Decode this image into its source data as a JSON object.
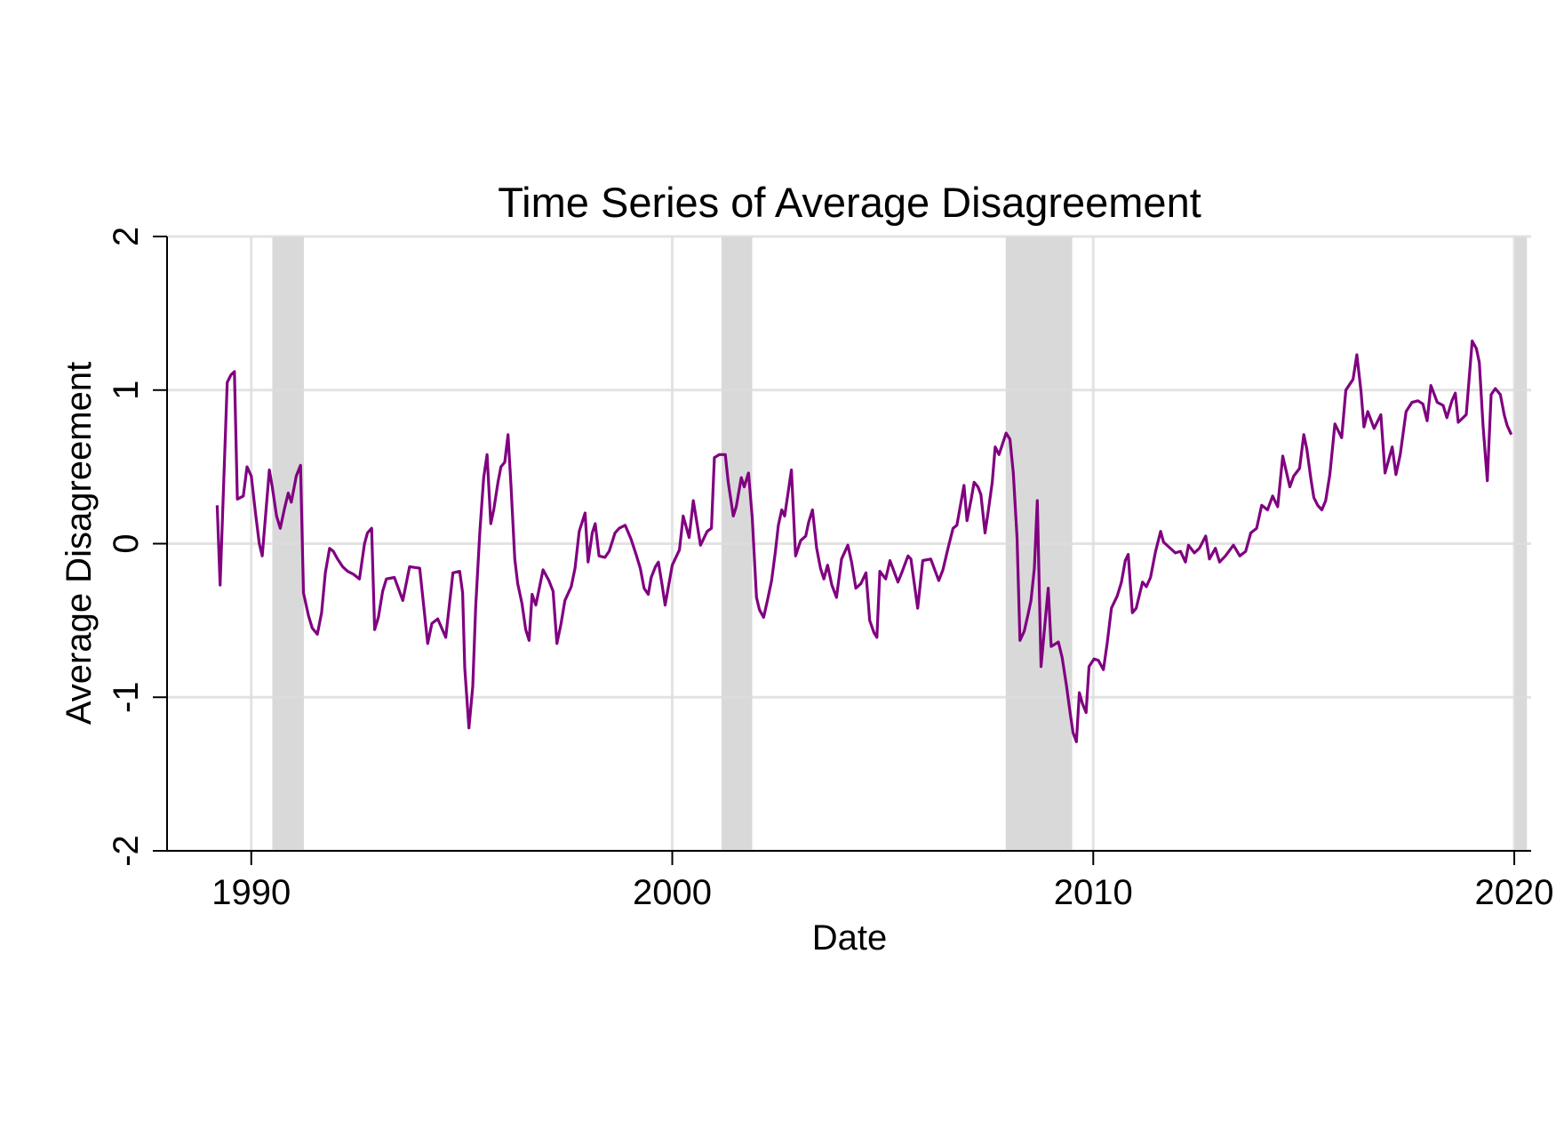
{
  "chart_data": {
    "type": "line",
    "title": "Time Series of Average Disagreement",
    "xlabel": "Date",
    "ylabel": "Average Disagreement",
    "xlim": [
      1988.0,
      2020.4
    ],
    "ylim": [
      -2,
      2
    ],
    "xticks": [
      1990,
      2000,
      2010,
      2020
    ],
    "yticks": [
      -2,
      -1,
      0,
      1,
      2
    ],
    "grid": true,
    "line_color": "#800080",
    "shade_color": "#d9d9d9",
    "grid_color": "#dddddd",
    "shaded_periods": [
      [
        1990.5,
        1991.25
      ],
      [
        2001.17,
        2001.9
      ],
      [
        2007.92,
        2009.5
      ],
      [
        2020.0,
        2020.3
      ]
    ],
    "series": [
      {
        "points": [
          [
            1989.19,
            0.25
          ],
          [
            1989.26,
            -0.27
          ],
          [
            1989.43,
            1.05
          ],
          [
            1989.52,
            1.1
          ],
          [
            1989.6,
            1.12
          ],
          [
            1989.67,
            0.29
          ],
          [
            1989.81,
            0.31
          ],
          [
            1989.9,
            0.5
          ],
          [
            1990.0,
            0.44
          ],
          [
            1990.1,
            0.2
          ],
          [
            1990.19,
            0.0
          ],
          [
            1990.26,
            -0.08
          ],
          [
            1990.43,
            0.48
          ],
          [
            1990.5,
            0.37
          ],
          [
            1990.6,
            0.18
          ],
          [
            1990.69,
            0.1
          ],
          [
            1990.79,
            0.23
          ],
          [
            1990.88,
            0.33
          ],
          [
            1990.95,
            0.27
          ],
          [
            1991.07,
            0.44
          ],
          [
            1991.17,
            0.51
          ],
          [
            1991.24,
            -0.32
          ],
          [
            1991.36,
            -0.47
          ],
          [
            1991.45,
            -0.55
          ],
          [
            1991.57,
            -0.59
          ],
          [
            1991.67,
            -0.45
          ],
          [
            1991.76,
            -0.19
          ],
          [
            1991.86,
            -0.03
          ],
          [
            1991.95,
            -0.05
          ],
          [
            1992.05,
            -0.1
          ],
          [
            1992.17,
            -0.15
          ],
          [
            1992.29,
            -0.18
          ],
          [
            1992.43,
            -0.2
          ],
          [
            1992.57,
            -0.23
          ],
          [
            1992.69,
            0.0
          ],
          [
            1992.76,
            0.07
          ],
          [
            1992.86,
            0.1
          ],
          [
            1992.93,
            -0.56
          ],
          [
            1993.02,
            -0.48
          ],
          [
            1993.12,
            -0.31
          ],
          [
            1993.21,
            -0.23
          ],
          [
            1993.4,
            -0.22
          ],
          [
            1993.6,
            -0.37
          ],
          [
            1993.76,
            -0.15
          ],
          [
            1994.0,
            -0.16
          ],
          [
            1994.19,
            -0.65
          ],
          [
            1994.29,
            -0.52
          ],
          [
            1994.43,
            -0.49
          ],
          [
            1994.62,
            -0.61
          ],
          [
            1994.79,
            -0.19
          ],
          [
            1994.95,
            -0.18
          ],
          [
            1995.02,
            -0.32
          ],
          [
            1995.07,
            -0.81
          ],
          [
            1995.17,
            -1.2
          ],
          [
            1995.26,
            -0.93
          ],
          [
            1995.33,
            -0.41
          ],
          [
            1995.43,
            0.08
          ],
          [
            1995.52,
            0.43
          ],
          [
            1995.6,
            0.58
          ],
          [
            1995.69,
            0.13
          ],
          [
            1995.76,
            0.22
          ],
          [
            1995.86,
            0.4
          ],
          [
            1995.93,
            0.5
          ],
          [
            1996.02,
            0.53
          ],
          [
            1996.1,
            0.71
          ],
          [
            1996.17,
            0.37
          ],
          [
            1996.26,
            -0.1
          ],
          [
            1996.33,
            -0.26
          ],
          [
            1996.43,
            -0.39
          ],
          [
            1996.52,
            -0.56
          ],
          [
            1996.6,
            -0.63
          ],
          [
            1996.67,
            -0.33
          ],
          [
            1996.76,
            -0.4
          ],
          [
            1996.93,
            -0.17
          ],
          [
            1997.07,
            -0.24
          ],
          [
            1997.17,
            -0.31
          ],
          [
            1997.26,
            -0.65
          ],
          [
            1997.36,
            -0.52
          ],
          [
            1997.45,
            -0.37
          ],
          [
            1997.6,
            -0.28
          ],
          [
            1997.69,
            -0.16
          ],
          [
            1997.79,
            0.08
          ],
          [
            1997.93,
            0.2
          ],
          [
            1998.0,
            -0.12
          ],
          [
            1998.1,
            0.07
          ],
          [
            1998.17,
            0.13
          ],
          [
            1998.26,
            -0.08
          ],
          [
            1998.4,
            -0.09
          ],
          [
            1998.5,
            -0.05
          ],
          [
            1998.64,
            0.07
          ],
          [
            1998.74,
            0.1
          ],
          [
            1998.88,
            0.12
          ],
          [
            1999.02,
            0.03
          ],
          [
            1999.14,
            -0.07
          ],
          [
            1999.24,
            -0.16
          ],
          [
            1999.33,
            -0.29
          ],
          [
            1999.43,
            -0.33
          ],
          [
            1999.5,
            -0.22
          ],
          [
            1999.6,
            -0.15
          ],
          [
            1999.67,
            -0.12
          ],
          [
            1999.76,
            -0.27
          ],
          [
            1999.83,
            -0.4
          ],
          [
            2000.0,
            -0.14
          ],
          [
            2000.17,
            -0.04
          ],
          [
            2000.26,
            0.18
          ],
          [
            2000.4,
            0.04
          ],
          [
            2000.5,
            0.28
          ],
          [
            2000.67,
            -0.01
          ],
          [
            2000.83,
            0.08
          ],
          [
            2000.93,
            0.1
          ],
          [
            2001.0,
            0.56
          ],
          [
            2001.12,
            0.58
          ],
          [
            2001.26,
            0.58
          ],
          [
            2001.33,
            0.4
          ],
          [
            2001.45,
            0.18
          ],
          [
            2001.52,
            0.24
          ],
          [
            2001.64,
            0.43
          ],
          [
            2001.71,
            0.37
          ],
          [
            2001.81,
            0.46
          ],
          [
            2001.9,
            0.17
          ],
          [
            2002.0,
            -0.35
          ],
          [
            2002.07,
            -0.43
          ],
          [
            2002.17,
            -0.48
          ],
          [
            2002.26,
            -0.37
          ],
          [
            2002.36,
            -0.24
          ],
          [
            2002.45,
            -0.05
          ],
          [
            2002.52,
            0.12
          ],
          [
            2002.6,
            0.22
          ],
          [
            2002.67,
            0.18
          ],
          [
            2002.83,
            0.48
          ],
          [
            2002.93,
            -0.08
          ],
          [
            2003.05,
            0.02
          ],
          [
            2003.17,
            0.05
          ],
          [
            2003.24,
            0.14
          ],
          [
            2003.33,
            0.22
          ],
          [
            2003.43,
            -0.03
          ],
          [
            2003.52,
            -0.16
          ],
          [
            2003.6,
            -0.23
          ],
          [
            2003.69,
            -0.14
          ],
          [
            2003.79,
            -0.27
          ],
          [
            2003.9,
            -0.35
          ],
          [
            2004.02,
            -0.1
          ],
          [
            2004.17,
            -0.01
          ],
          [
            2004.26,
            -0.12
          ],
          [
            2004.36,
            -0.29
          ],
          [
            2004.48,
            -0.26
          ],
          [
            2004.6,
            -0.19
          ],
          [
            2004.69,
            -0.5
          ],
          [
            2004.79,
            -0.58
          ],
          [
            2004.86,
            -0.61
          ],
          [
            2004.93,
            -0.18
          ],
          [
            2005.07,
            -0.23
          ],
          [
            2005.17,
            -0.11
          ],
          [
            2005.36,
            -0.25
          ],
          [
            2005.45,
            -0.19
          ],
          [
            2005.6,
            -0.08
          ],
          [
            2005.67,
            -0.1
          ],
          [
            2005.83,
            -0.42
          ],
          [
            2005.95,
            -0.11
          ],
          [
            2006.14,
            -0.1
          ],
          [
            2006.33,
            -0.24
          ],
          [
            2006.43,
            -0.17
          ],
          [
            2006.55,
            -0.03
          ],
          [
            2006.67,
            0.1
          ],
          [
            2006.76,
            0.12
          ],
          [
            2006.93,
            0.38
          ],
          [
            2007.0,
            0.15
          ],
          [
            2007.1,
            0.29
          ],
          [
            2007.17,
            0.4
          ],
          [
            2007.26,
            0.37
          ],
          [
            2007.33,
            0.32
          ],
          [
            2007.43,
            0.07
          ],
          [
            2007.5,
            0.2
          ],
          [
            2007.6,
            0.4
          ],
          [
            2007.67,
            0.63
          ],
          [
            2007.76,
            0.58
          ],
          [
            2007.93,
            0.72
          ],
          [
            2008.02,
            0.68
          ],
          [
            2008.1,
            0.46
          ],
          [
            2008.19,
            0.04
          ],
          [
            2008.26,
            -0.63
          ],
          [
            2008.36,
            -0.57
          ],
          [
            2008.45,
            -0.46
          ],
          [
            2008.52,
            -0.37
          ],
          [
            2008.6,
            -0.16
          ],
          [
            2008.67,
            0.28
          ],
          [
            2008.76,
            -0.8
          ],
          [
            2008.93,
            -0.29
          ],
          [
            2009.0,
            -0.67
          ],
          [
            2009.17,
            -0.64
          ],
          [
            2009.26,
            -0.74
          ],
          [
            2009.36,
            -0.92
          ],
          [
            2009.45,
            -1.1
          ],
          [
            2009.52,
            -1.23
          ],
          [
            2009.6,
            -1.29
          ],
          [
            2009.67,
            -0.97
          ],
          [
            2009.74,
            -1.04
          ],
          [
            2009.83,
            -1.1
          ],
          [
            2009.9,
            -0.8
          ],
          [
            2010.02,
            -0.75
          ],
          [
            2010.12,
            -0.76
          ],
          [
            2010.24,
            -0.82
          ],
          [
            2010.33,
            -0.65
          ],
          [
            2010.43,
            -0.42
          ],
          [
            2010.57,
            -0.34
          ],
          [
            2010.67,
            -0.25
          ],
          [
            2010.76,
            -0.11
          ],
          [
            2010.83,
            -0.07
          ],
          [
            2010.93,
            -0.45
          ],
          [
            2011.02,
            -0.42
          ],
          [
            2011.17,
            -0.25
          ],
          [
            2011.26,
            -0.28
          ],
          [
            2011.36,
            -0.22
          ],
          [
            2011.48,
            -0.05
          ],
          [
            2011.6,
            0.08
          ],
          [
            2011.67,
            0.01
          ],
          [
            2011.79,
            -0.02
          ],
          [
            2011.95,
            -0.06
          ],
          [
            2012.07,
            -0.05
          ],
          [
            2012.19,
            -0.12
          ],
          [
            2012.26,
            -0.01
          ],
          [
            2012.4,
            -0.06
          ],
          [
            2012.52,
            -0.03
          ],
          [
            2012.67,
            0.05
          ],
          [
            2012.76,
            -0.1
          ],
          [
            2012.9,
            -0.03
          ],
          [
            2013.0,
            -0.12
          ],
          [
            2013.14,
            -0.08
          ],
          [
            2013.33,
            -0.01
          ],
          [
            2013.48,
            -0.08
          ],
          [
            2013.62,
            -0.05
          ],
          [
            2013.74,
            0.07
          ],
          [
            2013.88,
            0.1
          ],
          [
            2014.0,
            0.25
          ],
          [
            2014.14,
            0.22
          ],
          [
            2014.26,
            0.31
          ],
          [
            2014.38,
            0.24
          ],
          [
            2014.5,
            0.57
          ],
          [
            2014.67,
            0.37
          ],
          [
            2014.76,
            0.44
          ],
          [
            2014.9,
            0.49
          ],
          [
            2015.0,
            0.71
          ],
          [
            2015.07,
            0.62
          ],
          [
            2015.17,
            0.42
          ],
          [
            2015.24,
            0.3
          ],
          [
            2015.33,
            0.25
          ],
          [
            2015.43,
            0.22
          ],
          [
            2015.52,
            0.28
          ],
          [
            2015.62,
            0.45
          ],
          [
            2015.74,
            0.78
          ],
          [
            2015.9,
            0.69
          ],
          [
            2016.0,
            1.0
          ],
          [
            2016.17,
            1.07
          ],
          [
            2016.26,
            1.23
          ],
          [
            2016.36,
            0.99
          ],
          [
            2016.43,
            0.76
          ],
          [
            2016.52,
            0.86
          ],
          [
            2016.67,
            0.75
          ],
          [
            2016.83,
            0.84
          ],
          [
            2016.93,
            0.46
          ],
          [
            2017.1,
            0.63
          ],
          [
            2017.19,
            0.45
          ],
          [
            2017.29,
            0.58
          ],
          [
            2017.43,
            0.86
          ],
          [
            2017.57,
            0.92
          ],
          [
            2017.71,
            0.93
          ],
          [
            2017.83,
            0.91
          ],
          [
            2017.93,
            0.8
          ],
          [
            2018.02,
            1.03
          ],
          [
            2018.17,
            0.92
          ],
          [
            2018.31,
            0.9
          ],
          [
            2018.4,
            0.82
          ],
          [
            2018.52,
            0.93
          ],
          [
            2018.6,
            0.98
          ],
          [
            2018.67,
            0.79
          ],
          [
            2018.86,
            0.84
          ],
          [
            2019.0,
            1.32
          ],
          [
            2019.1,
            1.27
          ],
          [
            2019.17,
            1.18
          ],
          [
            2019.26,
            0.76
          ],
          [
            2019.36,
            0.41
          ],
          [
            2019.45,
            0.97
          ],
          [
            2019.55,
            1.01
          ],
          [
            2019.67,
            0.97
          ],
          [
            2019.76,
            0.84
          ],
          [
            2019.83,
            0.77
          ],
          [
            2019.93,
            0.71
          ]
        ]
      }
    ]
  }
}
